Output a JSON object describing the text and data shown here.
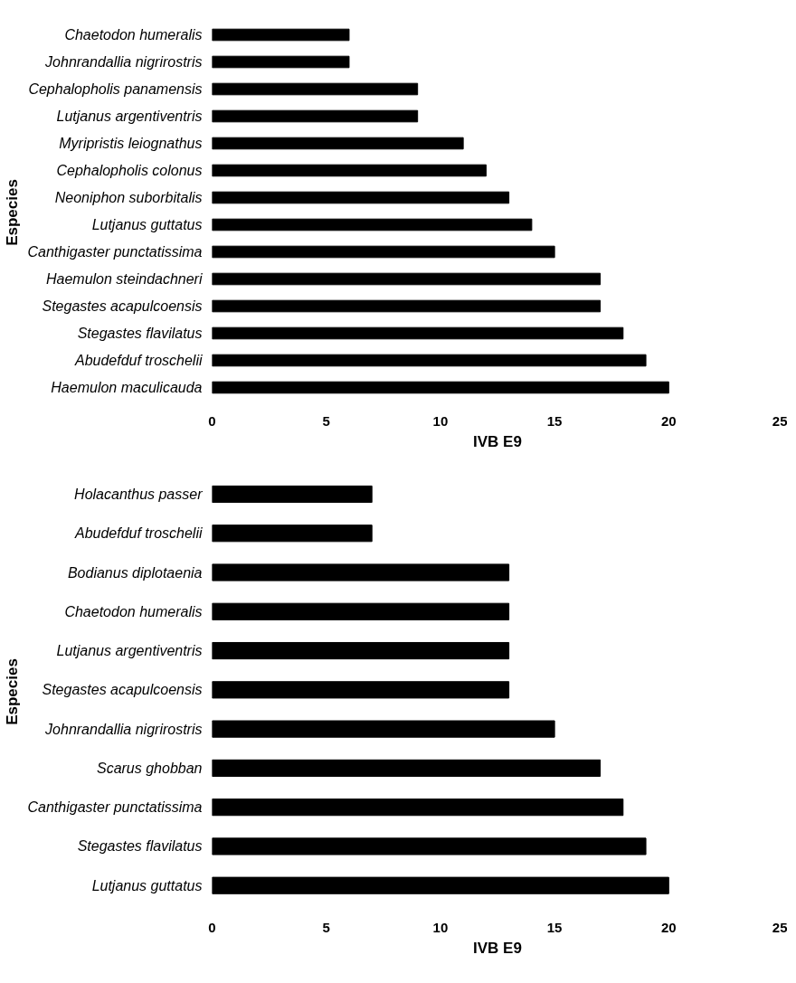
{
  "chart_data": [
    {
      "type": "bar",
      "orientation": "horizontal",
      "xlabel": "IVB E9",
      "ylabel": "Especies",
      "categories": [
        "Chaetodon humeralis",
        "Johnrandallia nigrirostris",
        "Cephalopholis panamensis",
        "Lutjanus argentiventris",
        "Myripristis leiognathus",
        "Cephalopholis colonus",
        "Neoniphon suborbitalis",
        "Lutjanus guttatus",
        "Canthigaster punctatissima",
        "Haemulon steindachneri",
        "Stegastes acapulcoensis",
        "Stegastes flavilatus",
        "Abudefduf troschelii",
        "Haemulon maculicauda"
      ],
      "values": [
        6,
        6,
        9,
        9,
        11,
        12,
        13,
        14,
        15,
        17,
        17,
        18,
        19,
        20
      ],
      "color": "#000000",
      "xlim": [
        0,
        25
      ],
      "xticks": [
        0,
        5,
        10,
        15,
        20,
        25
      ],
      "grid": false
    },
    {
      "type": "bar",
      "orientation": "horizontal",
      "xlabel": "IVB E9",
      "ylabel": "Especies",
      "categories": [
        "Holacanthus passer",
        "Abudefduf troschelii",
        "Bodianus diplotaenia",
        "Chaetodon humeralis",
        "Lutjanus argentiventris",
        "Stegastes acapulcoensis",
        "Johnrandallia nigrirostris",
        "Scarus ghobban",
        "Canthigaster punctatissima",
        "Stegastes flavilatus",
        "Lutjanus guttatus"
      ],
      "values": [
        7,
        7,
        13,
        13,
        13,
        13,
        15,
        17,
        18,
        19,
        20
      ],
      "color": "#000000",
      "xlim": [
        0,
        25
      ],
      "xticks": [
        0,
        5,
        10,
        15,
        20,
        25
      ],
      "grid": false
    }
  ]
}
